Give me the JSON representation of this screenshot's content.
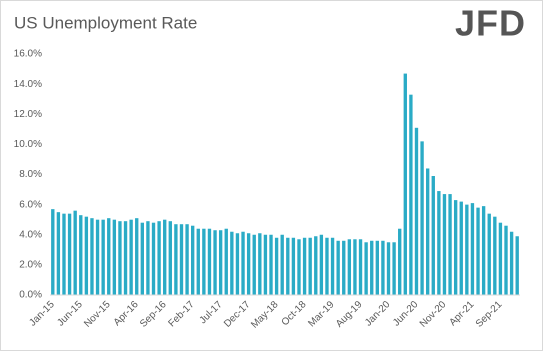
{
  "chart_data": {
    "type": "bar",
    "title": "US Unemployment Rate",
    "logo": "JFD",
    "color": "#2aabc6",
    "categories": [
      "Jan-15",
      null,
      null,
      null,
      null,
      "Jun-15",
      null,
      null,
      null,
      null,
      "Nov-15",
      null,
      null,
      null,
      null,
      "Apr-16",
      null,
      null,
      null,
      null,
      "Sep-16",
      null,
      null,
      null,
      null,
      "Feb-17",
      null,
      null,
      null,
      null,
      "Jul-17",
      null,
      null,
      null,
      null,
      "Dec-17",
      null,
      null,
      null,
      null,
      "May-18",
      null,
      null,
      null,
      null,
      "Oct-18",
      null,
      null,
      null,
      null,
      "Mar-19",
      null,
      null,
      null,
      null,
      "Aug-19",
      null,
      null,
      null,
      null,
      "Jan-20",
      null,
      null,
      null,
      null,
      "Jun-20",
      null,
      null,
      null,
      null,
      "Nov-20",
      null,
      null,
      null,
      null,
      "Apr-21",
      null,
      null,
      null,
      null,
      "Sep-21",
      null,
      null,
      null
    ],
    "values": [
      5.7,
      5.5,
      5.4,
      5.4,
      5.6,
      5.3,
      5.2,
      5.1,
      5.0,
      5.0,
      5.1,
      5.0,
      4.9,
      4.9,
      5.0,
      5.1,
      4.8,
      4.9,
      4.8,
      4.9,
      5.0,
      4.9,
      4.7,
      4.7,
      4.7,
      4.6,
      4.4,
      4.4,
      4.4,
      4.3,
      4.3,
      4.4,
      4.2,
      4.1,
      4.2,
      4.1,
      4.0,
      4.1,
      4.0,
      4.0,
      3.8,
      4.0,
      3.8,
      3.8,
      3.7,
      3.8,
      3.8,
      3.9,
      4.0,
      3.8,
      3.8,
      3.6,
      3.6,
      3.7,
      3.7,
      3.7,
      3.5,
      3.6,
      3.6,
      3.6,
      3.5,
      3.5,
      4.4,
      14.7,
      13.3,
      11.1,
      10.2,
      8.4,
      7.9,
      6.9,
      6.7,
      6.7,
      6.3,
      6.2,
      6.0,
      6.1,
      5.8,
      5.9,
      5.4,
      5.2,
      4.8,
      4.6,
      4.2,
      3.9
    ],
    "ylim": [
      0,
      16
    ],
    "yticks": [
      {
        "value": 0,
        "label": "0.0%"
      },
      {
        "value": 2,
        "label": "2.0%"
      },
      {
        "value": 4,
        "label": "4.0%"
      },
      {
        "value": 6,
        "label": "6.0%"
      },
      {
        "value": 8,
        "label": "8.0%"
      },
      {
        "value": 10,
        "label": "10.0%"
      },
      {
        "value": 12,
        "label": "12.0%"
      },
      {
        "value": 14,
        "label": "14.0%"
      },
      {
        "value": 16,
        "label": "16.0%"
      }
    ],
    "grid": false
  }
}
